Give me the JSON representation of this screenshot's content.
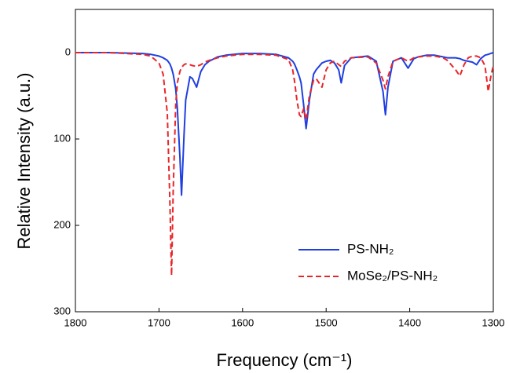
{
  "chart_data": {
    "type": "line",
    "xlabel": "Frequency (cm⁻¹)",
    "ylabel": "Relative Intensity (a.u.)",
    "x": [
      1800,
      1760,
      1720,
      1710,
      1700,
      1695,
      1690,
      1687,
      1685,
      1683,
      1680,
      1678,
      1675,
      1673,
      1670,
      1668,
      1663,
      1660,
      1655,
      1650,
      1645,
      1640,
      1630,
      1620,
      1600,
      1580,
      1560,
      1545,
      1540,
      1538,
      1535,
      1532,
      1530,
      1527,
      1524,
      1520,
      1515,
      1512,
      1505,
      1500,
      1495,
      1490,
      1485,
      1482,
      1478,
      1470,
      1450,
      1440,
      1432,
      1429,
      1426,
      1420,
      1410,
      1402,
      1395,
      1390,
      1380,
      1370,
      1360,
      1355,
      1345,
      1340,
      1335,
      1330,
      1325,
      1320,
      1315,
      1310,
      1306,
      1303,
      1300
    ],
    "series": [
      {
        "name": "PS-NH₂",
        "color": "#1f3fe0",
        "style": "solid",
        "values": [
          0,
          0,
          1,
          2,
          4,
          6,
          9,
          13,
          18,
          25,
          42,
          65,
          120,
          165,
          95,
          55,
          28,
          30,
          40,
          22,
          14,
          10,
          5,
          3,
          1,
          1,
          2,
          6,
          10,
          13,
          20,
          28,
          35,
          60,
          88,
          55,
          25,
          20,
          12,
          10,
          9,
          12,
          20,
          35,
          15,
          6,
          4,
          10,
          45,
          72,
          40,
          10,
          6,
          18,
          7,
          5,
          3,
          3,
          5,
          6,
          6,
          7,
          9,
          10,
          11,
          14,
          7,
          3,
          2,
          1,
          0
        ]
      },
      {
        "name": "MoSe₂/PS-NH₂",
        "color": "#e8262a",
        "style": "dashed",
        "values": [
          0,
          0,
          2,
          4,
          12,
          25,
          70,
          170,
          258,
          160,
          60,
          35,
          22,
          17,
          14,
          13,
          14,
          15,
          16,
          14,
          11,
          9,
          6,
          4,
          2,
          2,
          3,
          8,
          20,
          32,
          55,
          72,
          74,
          65,
          78,
          50,
          32,
          30,
          40,
          20,
          12,
          10,
          14,
          16,
          10,
          6,
          5,
          12,
          32,
          42,
          28,
          10,
          6,
          10,
          6,
          5,
          4,
          4,
          6,
          9,
          20,
          27,
          14,
          6,
          4,
          4,
          6,
          15,
          45,
          28,
          15
        ]
      }
    ],
    "xlim": [
      1800,
      1300
    ],
    "xticks": [
      1800,
      1700,
      1600,
      1500,
      1400,
      1300
    ],
    "ylim": [
      300,
      -50
    ],
    "yticks": [
      0,
      100,
      200,
      300
    ],
    "legend": "lower right",
    "grid": false
  }
}
